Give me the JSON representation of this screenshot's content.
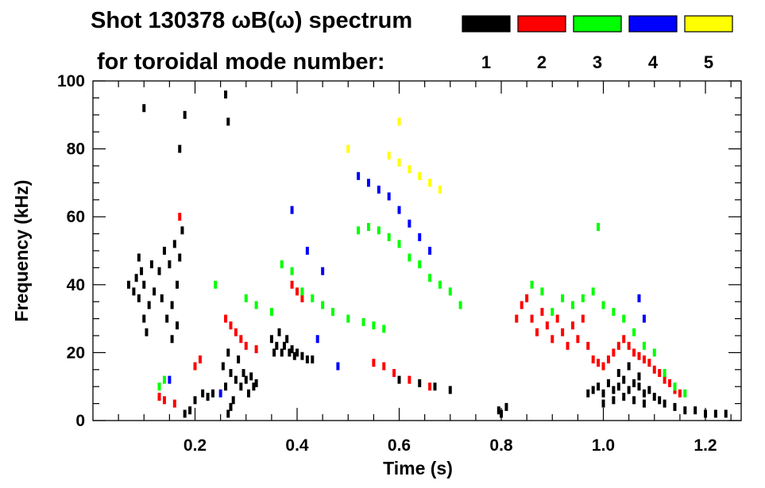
{
  "chart_data": {
    "type": "scatter",
    "title_line1": "Shot 130378 ωB(ω) spectrum",
    "title_line2": "for toroidal mode number:",
    "xlabel": "Time (s)",
    "ylabel": "Frequency (kHz)",
    "xlim": [
      0.0,
      1.27
    ],
    "ylim": [
      0,
      100
    ],
    "x_ticks": [
      0.2,
      0.4,
      0.6,
      0.8,
      1.0,
      1.2
    ],
    "x_tick_labels": [
      "0.2",
      "0.4",
      "0.6",
      "0.8",
      "1.0",
      "1.2"
    ],
    "y_ticks": [
      0,
      20,
      40,
      60,
      80,
      100
    ],
    "y_tick_labels": [
      "0",
      "20",
      "40",
      "60",
      "80",
      "100"
    ],
    "grid": false,
    "legend_position": "top-right",
    "series": [
      {
        "name": "1",
        "color": "#000000",
        "points": [
          [
            0.07,
            40
          ],
          [
            0.08,
            38
          ],
          [
            0.085,
            42
          ],
          [
            0.09,
            36
          ],
          [
            0.095,
            44
          ],
          [
            0.1,
            40
          ],
          [
            0.11,
            34
          ],
          [
            0.115,
            46
          ],
          [
            0.1,
            30
          ],
          [
            0.105,
            26
          ],
          [
            0.09,
            48
          ],
          [
            0.12,
            38
          ],
          [
            0.13,
            44
          ],
          [
            0.135,
            36
          ],
          [
            0.14,
            50
          ],
          [
            0.145,
            30
          ],
          [
            0.15,
            46
          ],
          [
            0.155,
            34
          ],
          [
            0.16,
            52
          ],
          [
            0.165,
            40
          ],
          [
            0.17,
            48
          ],
          [
            0.175,
            56
          ],
          [
            0.165,
            28
          ],
          [
            0.155,
            24
          ],
          [
            0.18,
            2
          ],
          [
            0.19,
            3
          ],
          [
            0.215,
            8
          ],
          [
            0.225,
            7
          ],
          [
            0.235,
            8
          ],
          [
            0.2,
            6
          ],
          [
            0.255,
            16
          ],
          [
            0.26,
            10
          ],
          [
            0.265,
            20
          ],
          [
            0.27,
            14
          ],
          [
            0.275,
            6
          ],
          [
            0.28,
            12
          ],
          [
            0.285,
            18
          ],
          [
            0.29,
            10
          ],
          [
            0.295,
            14
          ],
          [
            0.3,
            12
          ],
          [
            0.305,
            8
          ],
          [
            0.31,
            13
          ],
          [
            0.315,
            10
          ],
          [
            0.32,
            11
          ],
          [
            0.265,
            2
          ],
          [
            0.27,
            4
          ],
          [
            0.35,
            24
          ],
          [
            0.355,
            20
          ],
          [
            0.36,
            22
          ],
          [
            0.365,
            26
          ],
          [
            0.37,
            20
          ],
          [
            0.375,
            22
          ],
          [
            0.38,
            24
          ],
          [
            0.385,
            20
          ],
          [
            0.39,
            21
          ],
          [
            0.395,
            19
          ],
          [
            0.4,
            20
          ],
          [
            0.41,
            19
          ],
          [
            0.42,
            18
          ],
          [
            0.43,
            18
          ],
          [
            0.26,
            96
          ],
          [
            0.265,
            88
          ],
          [
            0.17,
            80
          ],
          [
            0.18,
            90
          ],
          [
            0.1,
            92
          ],
          [
            0.6,
            12
          ],
          [
            0.64,
            11
          ],
          [
            0.67,
            10
          ],
          [
            0.7,
            9
          ],
          [
            0.795,
            3
          ],
          [
            0.8,
            2
          ],
          [
            0.81,
            4
          ],
          [
            0.97,
            8
          ],
          [
            0.98,
            9
          ],
          [
            0.99,
            10
          ],
          [
            1.0,
            8
          ],
          [
            1.01,
            11
          ],
          [
            1.02,
            9
          ],
          [
            1.03,
            10
          ],
          [
            1.04,
            12
          ],
          [
            1.05,
            9
          ],
          [
            1.06,
            11
          ],
          [
            1.07,
            10
          ],
          [
            1.08,
            8
          ],
          [
            1.09,
            9
          ],
          [
            1.1,
            7
          ],
          [
            1.11,
            6
          ],
          [
            1.12,
            5
          ],
          [
            1.14,
            4
          ],
          [
            1.16,
            3
          ],
          [
            1.18,
            3
          ],
          [
            1.2,
            2
          ],
          [
            1.22,
            2
          ],
          [
            1.24,
            2
          ],
          [
            1.0,
            5
          ],
          [
            1.02,
            6
          ],
          [
            1.04,
            7
          ],
          [
            1.06,
            6
          ],
          [
            1.08,
            5
          ],
          [
            1.03,
            14
          ],
          [
            1.05,
            16
          ],
          [
            1.07,
            13
          ]
        ]
      },
      {
        "name": "2",
        "color": "#ff0000",
        "points": [
          [
            0.17,
            60
          ],
          [
            0.2,
            16
          ],
          [
            0.21,
            18
          ],
          [
            0.13,
            7
          ],
          [
            0.14,
            6
          ],
          [
            0.16,
            5
          ],
          [
            0.26,
            30
          ],
          [
            0.27,
            28
          ],
          [
            0.28,
            26
          ],
          [
            0.29,
            24
          ],
          [
            0.3,
            22
          ],
          [
            0.32,
            21
          ],
          [
            0.39,
            40
          ],
          [
            0.4,
            38
          ],
          [
            0.41,
            36
          ],
          [
            0.55,
            17
          ],
          [
            0.57,
            16
          ],
          [
            0.59,
            14
          ],
          [
            0.62,
            12
          ],
          [
            0.66,
            10
          ],
          [
            0.83,
            30
          ],
          [
            0.84,
            34
          ],
          [
            0.85,
            36
          ],
          [
            0.86,
            30
          ],
          [
            0.87,
            26
          ],
          [
            0.88,
            32
          ],
          [
            0.89,
            28
          ],
          [
            0.9,
            24
          ],
          [
            0.91,
            30
          ],
          [
            0.92,
            26
          ],
          [
            0.93,
            22
          ],
          [
            0.94,
            28
          ],
          [
            0.95,
            24
          ],
          [
            0.96,
            30
          ],
          [
            0.97,
            22
          ],
          [
            0.98,
            18
          ],
          [
            0.99,
            17
          ],
          [
            1.0,
            16
          ],
          [
            1.01,
            18
          ],
          [
            1.02,
            20
          ],
          [
            1.03,
            22
          ],
          [
            1.04,
            24
          ],
          [
            1.05,
            22
          ],
          [
            1.06,
            20
          ],
          [
            1.07,
            19
          ],
          [
            1.08,
            18
          ],
          [
            1.09,
            17
          ],
          [
            1.1,
            15
          ],
          [
            1.11,
            14
          ],
          [
            1.12,
            12
          ],
          [
            1.13,
            11
          ],
          [
            1.14,
            9
          ],
          [
            1.15,
            8
          ]
        ]
      },
      {
        "name": "3",
        "color": "#00ff00",
        "points": [
          [
            0.13,
            10
          ],
          [
            0.14,
            12
          ],
          [
            0.24,
            40
          ],
          [
            0.3,
            36
          ],
          [
            0.32,
            34
          ],
          [
            0.35,
            32
          ],
          [
            0.37,
            46
          ],
          [
            0.39,
            44
          ],
          [
            0.41,
            38
          ],
          [
            0.43,
            36
          ],
          [
            0.45,
            34
          ],
          [
            0.47,
            32
          ],
          [
            0.5,
            30
          ],
          [
            0.53,
            29
          ],
          [
            0.55,
            28
          ],
          [
            0.57,
            27
          ],
          [
            0.52,
            56
          ],
          [
            0.54,
            57
          ],
          [
            0.56,
            56
          ],
          [
            0.58,
            54
          ],
          [
            0.6,
            52
          ],
          [
            0.62,
            48
          ],
          [
            0.64,
            46
          ],
          [
            0.66,
            42
          ],
          [
            0.68,
            40
          ],
          [
            0.7,
            38
          ],
          [
            0.72,
            34
          ],
          [
            0.86,
            40
          ],
          [
            0.88,
            38
          ],
          [
            0.9,
            32
          ],
          [
            0.92,
            36
          ],
          [
            0.94,
            34
          ],
          [
            0.96,
            36
          ],
          [
            0.98,
            38
          ],
          [
            1.0,
            34
          ],
          [
            1.02,
            32
          ],
          [
            1.04,
            30
          ],
          [
            1.06,
            26
          ],
          [
            1.08,
            22
          ],
          [
            1.1,
            20
          ],
          [
            1.12,
            14
          ],
          [
            1.14,
            10
          ],
          [
            1.16,
            8
          ],
          [
            0.99,
            57
          ]
        ]
      },
      {
        "name": "4",
        "color": "#0000ff",
        "points": [
          [
            0.39,
            62
          ],
          [
            0.42,
            50
          ],
          [
            0.45,
            44
          ],
          [
            0.44,
            24
          ],
          [
            0.52,
            72
          ],
          [
            0.54,
            70
          ],
          [
            0.56,
            68
          ],
          [
            0.58,
            66
          ],
          [
            0.6,
            62
          ],
          [
            0.62,
            58
          ],
          [
            0.64,
            54
          ],
          [
            0.66,
            50
          ],
          [
            0.48,
            16
          ],
          [
            0.15,
            12
          ],
          [
            1.07,
            36
          ],
          [
            1.08,
            30
          ],
          [
            0.25,
            8
          ]
        ]
      },
      {
        "name": "5",
        "color": "#ffff00",
        "points": [
          [
            0.58,
            78
          ],
          [
            0.6,
            76
          ],
          [
            0.62,
            74
          ],
          [
            0.64,
            72
          ],
          [
            0.66,
            70
          ],
          [
            0.68,
            68
          ],
          [
            0.5,
            80
          ],
          [
            0.6,
            88
          ]
        ]
      }
    ]
  }
}
